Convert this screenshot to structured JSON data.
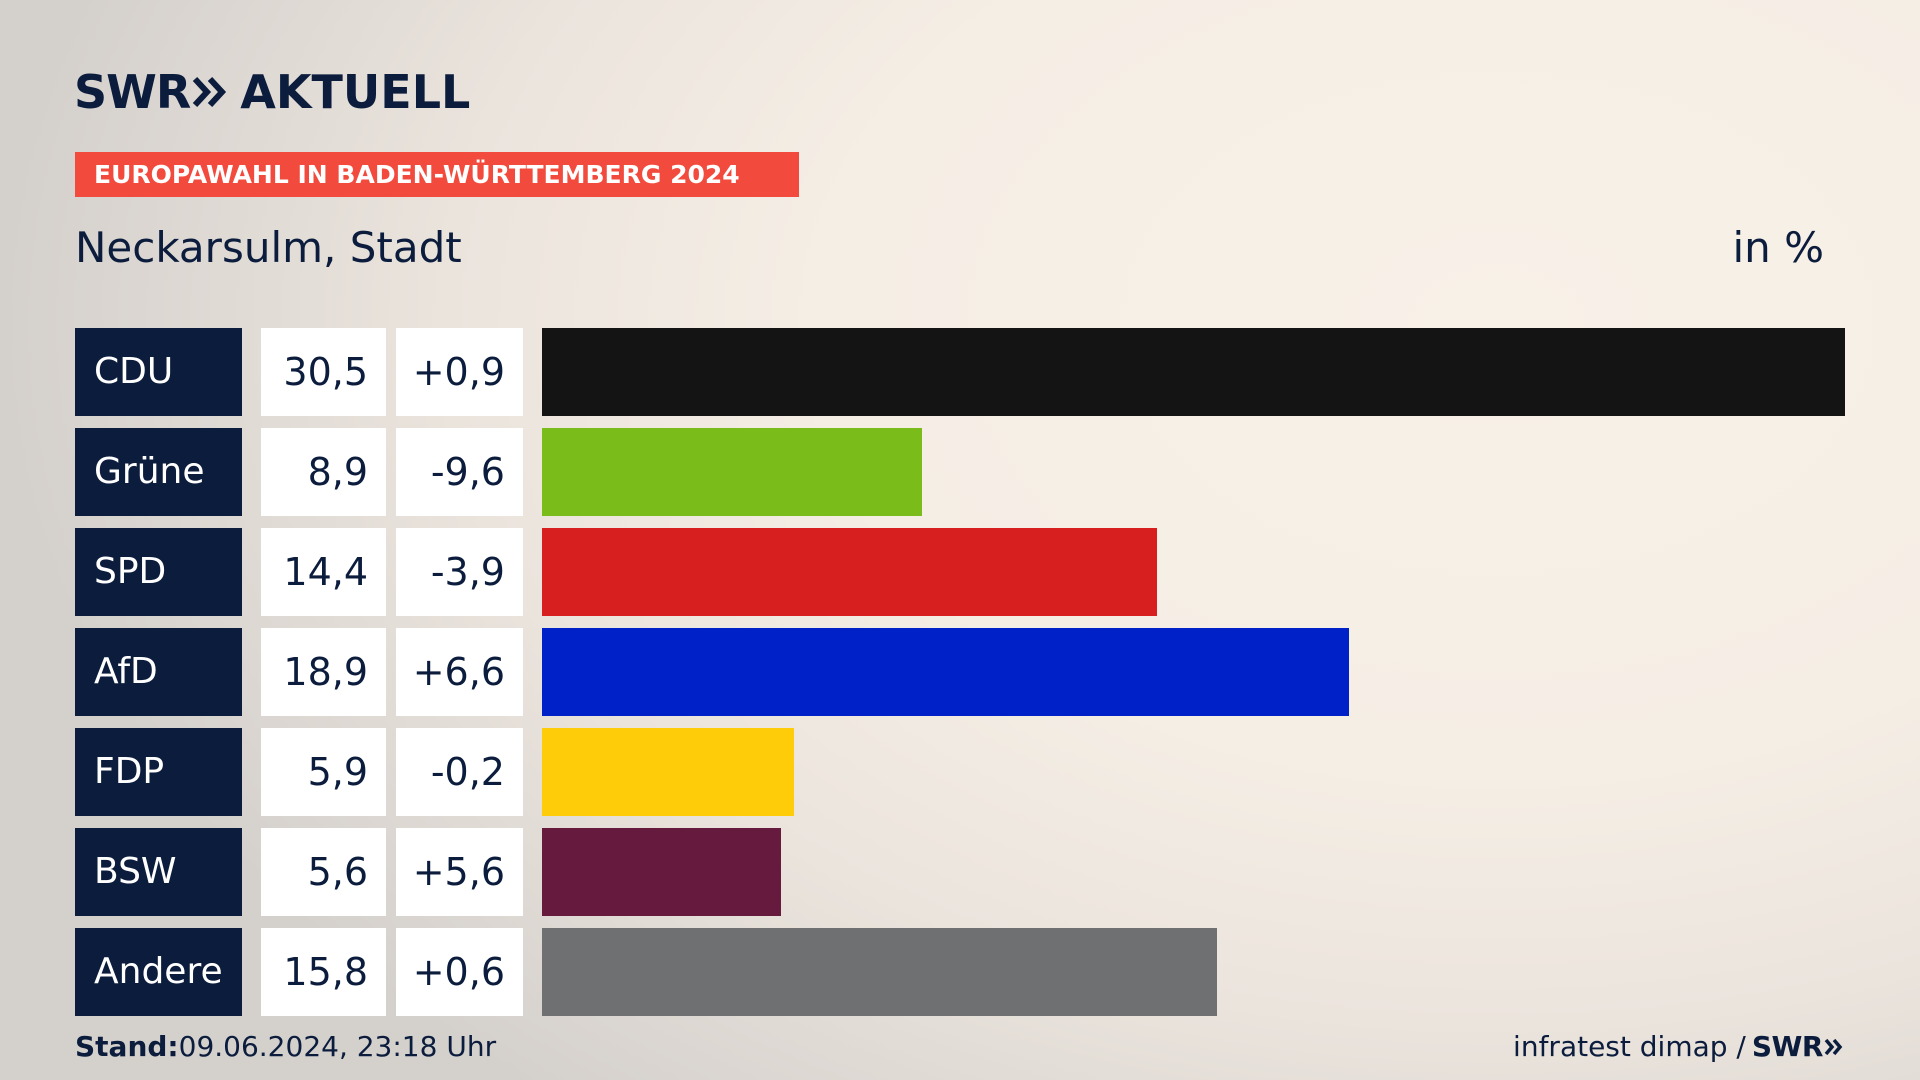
{
  "header": {
    "logo_swr": "SWR",
    "logo_aktuell": "AKTUELL",
    "badge": "EUROPAWAHL IN BADEN-WÜRTTEMBERG 2024",
    "badge_color": "#f24b3d",
    "subtitle": "Neckarsulm, Stadt",
    "unit": "in %"
  },
  "chart_data": {
    "type": "bar",
    "orientation": "horizontal",
    "title": "Neckarsulm, Stadt",
    "unit": "in %",
    "categories": [
      "CDU",
      "Grüne",
      "SPD",
      "AfD",
      "FDP",
      "BSW",
      "Andere"
    ],
    "values": [
      30.5,
      8.9,
      14.4,
      18.9,
      5.9,
      5.6,
      15.8
    ],
    "value_labels": [
      "30,5",
      "8,9",
      "14,4",
      "18,9",
      "5,9",
      "5,6",
      "15,8"
    ],
    "change_labels": [
      "+0,9",
      "-9,6",
      "-3,9",
      "+6,6",
      "-0,2",
      "+5,6",
      "+0,6"
    ],
    "changes": [
      0.9,
      -9.6,
      -3.9,
      6.6,
      -0.2,
      5.6,
      0.6
    ],
    "colors": [
      "#141414",
      "#7abd1a",
      "#d71f1f",
      "#0020c8",
      "#fecc08",
      "#661a3d",
      "#6f7072"
    ],
    "xlim": [
      0,
      30.5
    ],
    "grid": false,
    "legend": "none"
  },
  "footer": {
    "stand_label": "Stand:",
    "stand_value": "09.06.2024, 23:18 Uhr",
    "source": "infratest dimap /",
    "source_swr": "SWR"
  }
}
